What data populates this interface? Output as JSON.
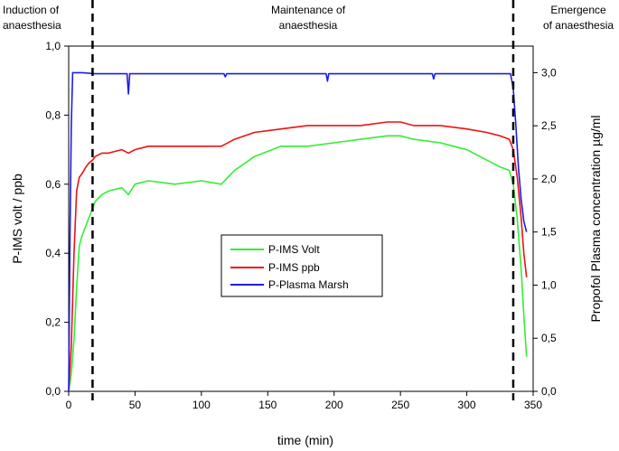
{
  "chart_data": {
    "type": "line",
    "xlabel": "time (min)",
    "ylabel_left": "P-IMS volt / ppb",
    "ylabel_right": "Propofol Plasma concentration µg/ml",
    "xlim": [
      0,
      350
    ],
    "ylim_left": [
      0,
      1.0
    ],
    "ylim_right": [
      0,
      3.25
    ],
    "x_ticks": [
      "0",
      "50",
      "100",
      "150",
      "200",
      "250",
      "300",
      "350"
    ],
    "y_left_ticks": [
      "0,0",
      "0,2",
      "0,4",
      "0,6",
      "0,8",
      "1,0"
    ],
    "y_right_ticks": [
      "0,0",
      "0,5",
      "1,0",
      "1,5",
      "2,0",
      "2,5",
      "3,0"
    ],
    "grid": false,
    "legend_position": "center",
    "phases": [
      {
        "label_lines": [
          "Induction of",
          "anaesthesia"
        ]
      },
      {
        "label_lines": [
          "Maintenance of",
          "anaesthesia"
        ]
      },
      {
        "label_lines": [
          "Emergence",
          "of anaesthesia"
        ]
      }
    ],
    "phase_boundaries_x": [
      18,
      335
    ],
    "series": [
      {
        "name": "P-IMS Volt",
        "color": "#33ee33",
        "axis": "left",
        "x": [
          0,
          2,
          4,
          6,
          8,
          10,
          13,
          15,
          18,
          20,
          25,
          30,
          40,
          45,
          50,
          60,
          80,
          100,
          115,
          125,
          140,
          160,
          180,
          200,
          220,
          240,
          250,
          260,
          280,
          300,
          315,
          325,
          332,
          335,
          338,
          341,
          343,
          345
        ],
        "y": [
          0.0,
          0.05,
          0.15,
          0.3,
          0.42,
          0.45,
          0.48,
          0.5,
          0.53,
          0.55,
          0.57,
          0.58,
          0.59,
          0.57,
          0.6,
          0.61,
          0.6,
          0.61,
          0.6,
          0.64,
          0.68,
          0.71,
          0.71,
          0.72,
          0.73,
          0.74,
          0.74,
          0.73,
          0.72,
          0.7,
          0.67,
          0.65,
          0.64,
          0.6,
          0.5,
          0.35,
          0.22,
          0.1
        ]
      },
      {
        "name": "P-IMS ppb",
        "color": "#ee1111",
        "axis": "left",
        "x": [
          0,
          2,
          4,
          6,
          8,
          10,
          13,
          15,
          18,
          20,
          25,
          30,
          40,
          45,
          50,
          60,
          80,
          100,
          115,
          125,
          140,
          160,
          180,
          200,
          220,
          240,
          250,
          260,
          280,
          300,
          315,
          325,
          332,
          335,
          338,
          341,
          343,
          345
        ],
        "y": [
          0.0,
          0.13,
          0.4,
          0.58,
          0.62,
          0.63,
          0.65,
          0.66,
          0.67,
          0.68,
          0.69,
          0.69,
          0.7,
          0.69,
          0.7,
          0.71,
          0.71,
          0.71,
          0.71,
          0.73,
          0.75,
          0.76,
          0.77,
          0.77,
          0.77,
          0.78,
          0.78,
          0.77,
          0.77,
          0.76,
          0.75,
          0.74,
          0.73,
          0.7,
          0.62,
          0.5,
          0.4,
          0.33
        ]
      },
      {
        "name": "P-Plasma Marsh",
        "color": "#1c1cee",
        "axis": "right",
        "x": [
          0,
          1,
          2,
          3,
          5,
          10,
          20,
          44,
          45,
          46,
          47,
          100,
          117,
          118,
          119,
          194,
          195,
          196,
          274,
          275,
          276,
          333,
          335,
          337,
          339,
          341,
          343,
          345
        ],
        "y": [
          0.0,
          1.5,
          2.5,
          3.0,
          3.0,
          3.0,
          2.99,
          2.99,
          2.8,
          2.99,
          2.99,
          2.99,
          2.99,
          2.96,
          2.99,
          2.99,
          2.92,
          2.99,
          2.99,
          2.94,
          2.99,
          2.99,
          2.85,
          2.5,
          2.1,
          1.8,
          1.6,
          1.5
        ]
      }
    ]
  }
}
